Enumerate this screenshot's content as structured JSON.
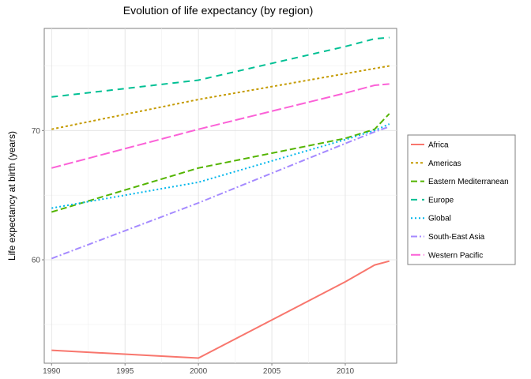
{
  "chart_data": {
    "type": "line",
    "title": "Evolution of life expectancy (by region)",
    "xlabel": "",
    "ylabel": "Life expectancy at birth (years)",
    "xlim": [
      1989.5,
      2013.5
    ],
    "ylim": [
      52.0,
      77.9
    ],
    "x_ticks": [
      1990,
      1995,
      2000,
      2005,
      2010
    ],
    "y_ticks": [
      60,
      70
    ],
    "grid": true,
    "legend_position": "right",
    "series": [
      {
        "name": "Africa",
        "color": "#F8766D",
        "dash": "",
        "x": [
          1990,
          2000,
          2010,
          2012,
          2013
        ],
        "y": [
          53.0,
          52.4,
          58.3,
          59.6,
          59.9
        ]
      },
      {
        "name": "Americas",
        "color": "#C49A00",
        "dash": "3 3",
        "x": [
          1990,
          2000,
          2010,
          2012,
          2013
        ],
        "y": [
          70.1,
          72.4,
          74.4,
          74.8,
          75.0
        ]
      },
      {
        "name": "Eastern Mediterranean",
        "color": "#53B400",
        "dash": "8 4",
        "x": [
          1990,
          2000,
          2010,
          2012,
          2013
        ],
        "y": [
          63.7,
          67.1,
          69.4,
          70.1,
          71.3
        ]
      },
      {
        "name": "Europe",
        "color": "#00C094",
        "dash": "8 6",
        "x": [
          1990,
          2000,
          2010,
          2012,
          2013
        ],
        "y": [
          72.6,
          73.9,
          76.5,
          77.1,
          77.2
        ]
      },
      {
        "name": "Global",
        "color": "#00B6EB",
        "dash": "2 3",
        "x": [
          1990,
          2000,
          2010,
          2012,
          2013
        ],
        "y": [
          64.0,
          66.0,
          69.3,
          70.0,
          70.5
        ]
      },
      {
        "name": "South-East Asia",
        "color": "#A58AFF",
        "dash": "8 3 2 3",
        "x": [
          1990,
          2000,
          2010,
          2012,
          2013
        ],
        "y": [
          60.1,
          64.4,
          69.0,
          69.9,
          70.3
        ]
      },
      {
        "name": "Western Pacific",
        "color": "#FB61D7",
        "dash": "12 4",
        "x": [
          1990,
          2000,
          2010,
          2012,
          2013
        ],
        "y": [
          67.1,
          70.1,
          72.9,
          73.5,
          73.6
        ]
      }
    ]
  }
}
